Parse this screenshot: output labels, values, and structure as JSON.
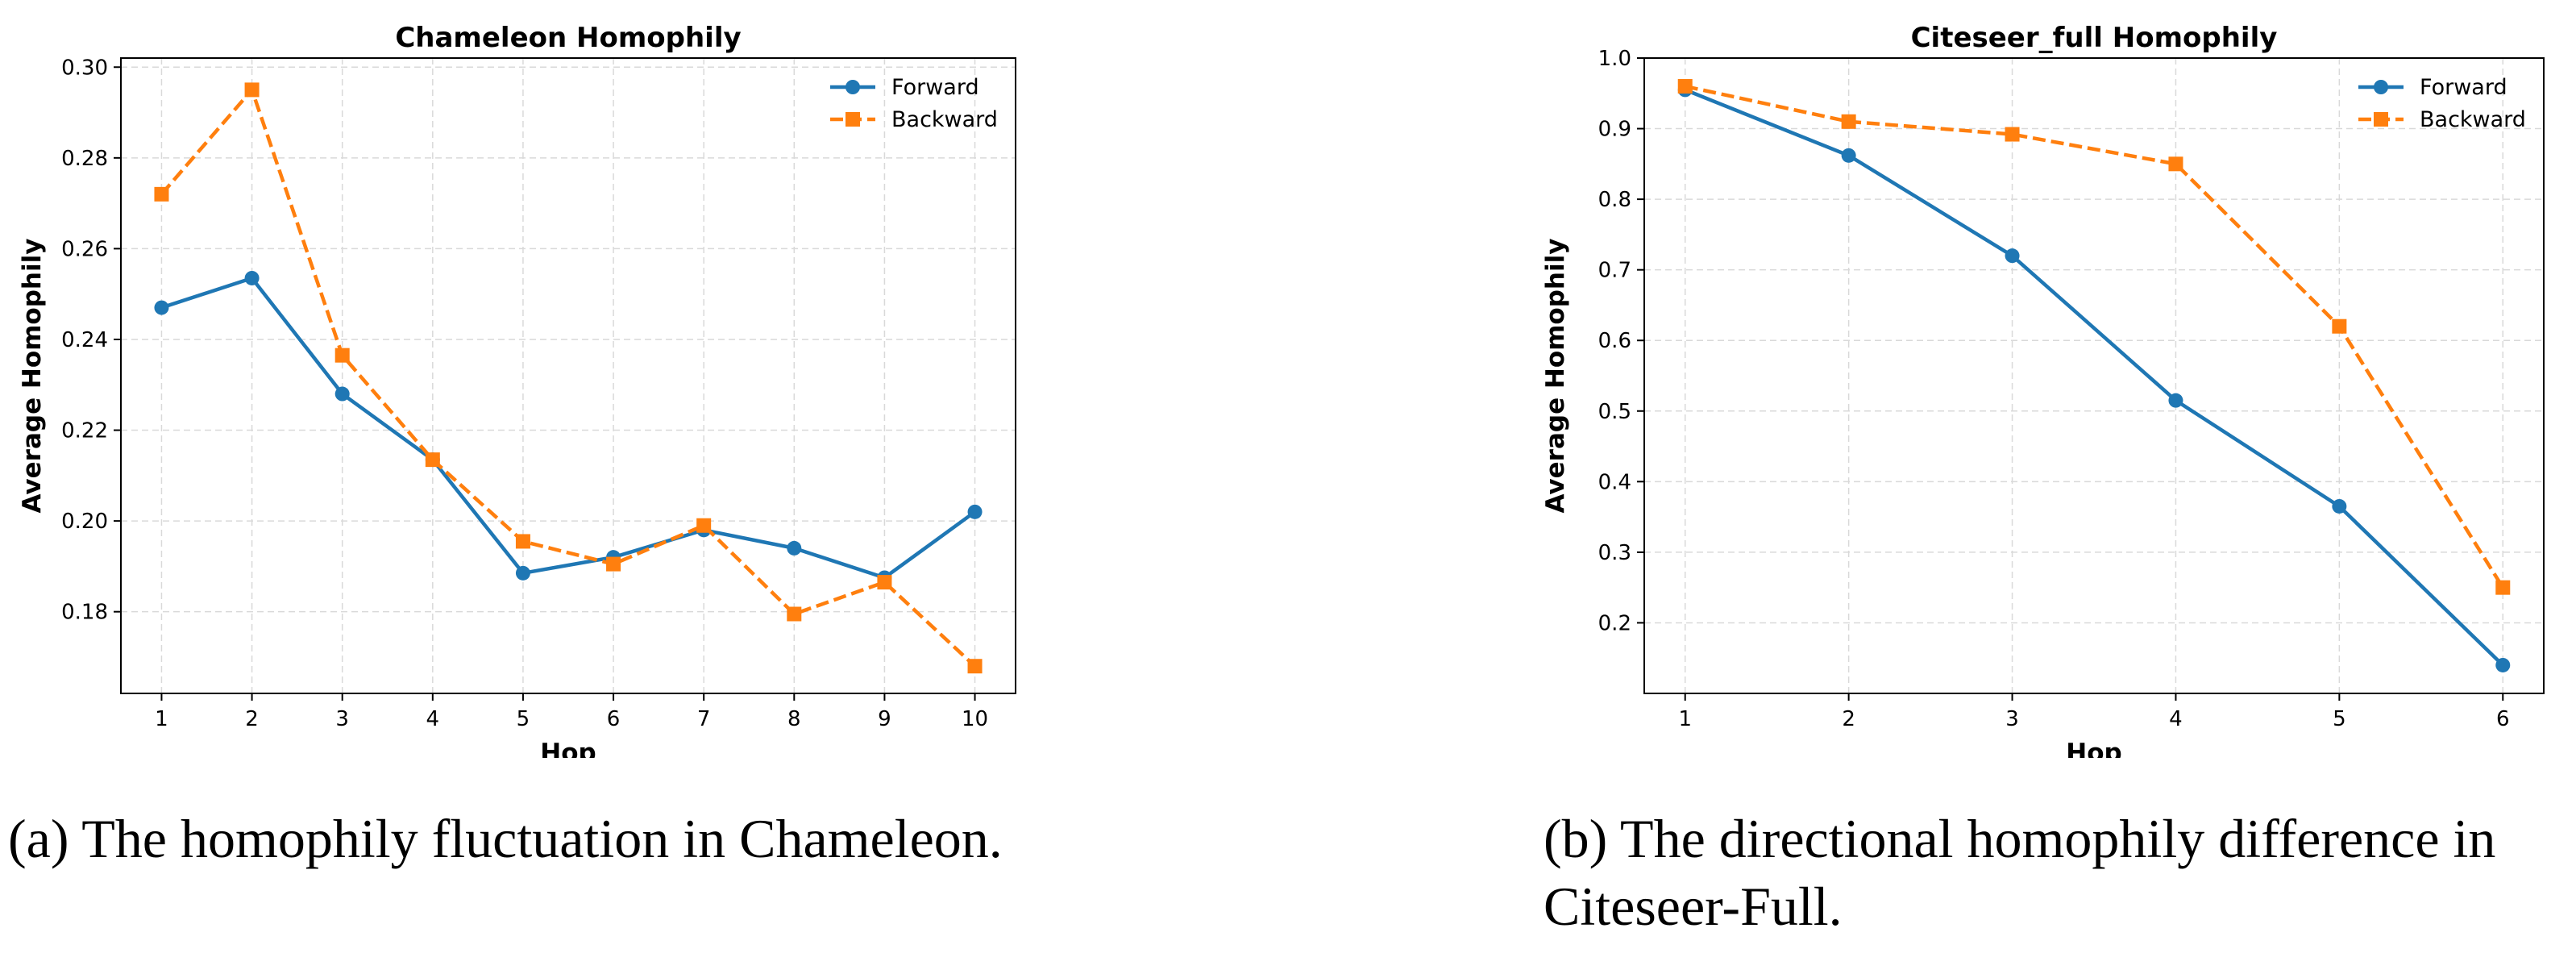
{
  "chart_data": [
    {
      "type": "line",
      "title": "Chameleon Homophily",
      "xlabel": "Hop",
      "ylabel": "Average Homophily",
      "x": [
        1,
        2,
        3,
        4,
        5,
        6,
        7,
        8,
        9,
        10
      ],
      "xlim": [
        0.55,
        10.45
      ],
      "ylim": [
        0.162,
        0.302
      ],
      "yticks": [
        "0.18",
        "0.20",
        "0.22",
        "0.24",
        "0.26",
        "0.28",
        "0.30"
      ],
      "ytick_values": [
        0.18,
        0.2,
        0.22,
        0.24,
        0.26,
        0.28,
        0.3
      ],
      "grid": true,
      "legend_position": "top-right",
      "series": [
        {
          "name": "Forward",
          "values": [
            0.247,
            0.2535,
            0.228,
            0.2135,
            0.1885,
            0.192,
            0.198,
            0.194,
            0.1875,
            0.202
          ],
          "color": "#1f77b4",
          "marker": "circle",
          "linestyle": "solid"
        },
        {
          "name": "Backward",
          "values": [
            0.272,
            0.295,
            0.2365,
            0.2135,
            0.1955,
            0.1905,
            0.199,
            0.1795,
            0.1865,
            0.168
          ],
          "color": "#ff7f0e",
          "marker": "square",
          "linestyle": "dashed"
        }
      ]
    },
    {
      "type": "line",
      "title": "Citeseer_full Homophily",
      "xlabel": "Hop",
      "ylabel": "Average Homophily",
      "x": [
        1,
        2,
        3,
        4,
        5,
        6
      ],
      "xlim": [
        0.75,
        6.25
      ],
      "ylim": [
        0.1,
        1.0
      ],
      "yticks": [
        "0.2",
        "0.3",
        "0.4",
        "0.5",
        "0.6",
        "0.7",
        "0.8",
        "0.9",
        "1.0"
      ],
      "ytick_values": [
        0.2,
        0.3,
        0.4,
        0.5,
        0.6,
        0.7,
        0.8,
        0.9,
        1.0
      ],
      "grid": true,
      "legend_position": "top-right",
      "series": [
        {
          "name": "Forward",
          "values": [
            0.955,
            0.862,
            0.72,
            0.515,
            0.365,
            0.14
          ],
          "color": "#1f77b4",
          "marker": "circle",
          "linestyle": "solid"
        },
        {
          "name": "Backward",
          "values": [
            0.96,
            0.91,
            0.892,
            0.85,
            0.62,
            0.25
          ],
          "color": "#ff7f0e",
          "marker": "square",
          "linestyle": "dashed"
        }
      ]
    }
  ],
  "captions": {
    "a": "(a) The homophily fluctuation in Chameleon.",
    "b": "(b) The directional homophily difference in Citeseer-Full."
  }
}
